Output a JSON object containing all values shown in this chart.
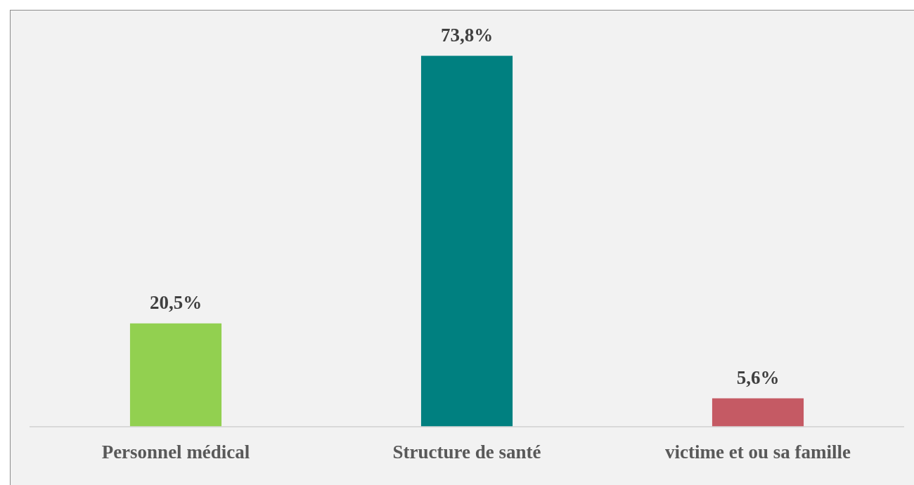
{
  "chart_data": {
    "type": "bar",
    "categories": [
      "Personnel médical",
      "Structure de santé",
      "victime et ou sa famille"
    ],
    "values": [
      20.5,
      73.8,
      5.6
    ],
    "colors": [
      "#92d050",
      "#008080",
      "#c55a64"
    ],
    "value_labels": [
      "20,5%",
      "73,8%",
      "5,6%"
    ],
    "grid": false,
    "legend": false
  }
}
